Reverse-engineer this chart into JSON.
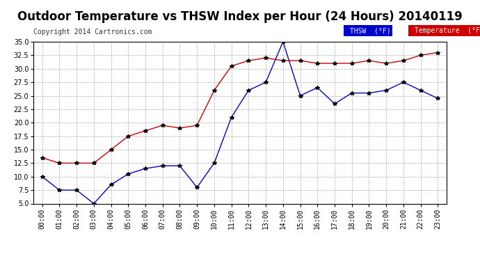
{
  "title": "Outdoor Temperature vs THSW Index per Hour (24 Hours) 20140119",
  "copyright": "Copyright 2014 Cartronics.com",
  "hours": [
    "00:00",
    "01:00",
    "02:00",
    "03:00",
    "04:00",
    "05:00",
    "06:00",
    "07:00",
    "08:00",
    "09:00",
    "10:00",
    "11:00",
    "12:00",
    "13:00",
    "14:00",
    "15:00",
    "16:00",
    "17:00",
    "18:00",
    "19:00",
    "20:00",
    "21:00",
    "22:00",
    "23:00"
  ],
  "temperature": [
    13.5,
    12.5,
    12.5,
    12.5,
    15.0,
    17.5,
    18.5,
    19.5,
    19.0,
    19.5,
    26.0,
    30.5,
    31.5,
    32.0,
    31.5,
    31.5,
    31.0,
    31.0,
    31.0,
    31.5,
    31.0,
    31.5,
    32.5,
    33.0
  ],
  "thsw": [
    10.0,
    7.5,
    7.5,
    5.0,
    8.5,
    10.5,
    11.5,
    12.0,
    12.0,
    8.0,
    12.5,
    21.0,
    26.0,
    27.5,
    35.0,
    25.0,
    26.5,
    23.5,
    25.5,
    25.5,
    26.0,
    27.5,
    26.0,
    24.5
  ],
  "temp_color": "#cc0000",
  "thsw_color": "#0000cc",
  "background_color": "#ffffff",
  "plot_bg_color": "#ffffff",
  "grid_color": "#aaaaaa",
  "ylim": [
    5.0,
    35.0
  ],
  "yticks": [
    5.0,
    7.5,
    10.0,
    12.5,
    15.0,
    17.5,
    20.0,
    22.5,
    25.0,
    27.5,
    30.0,
    32.5,
    35.0
  ],
  "legend_thsw_bg": "#0000cc",
  "legend_temp_bg": "#cc0000",
  "legend_text_color": "#ffffff",
  "title_fontsize": 12,
  "copyright_fontsize": 7,
  "axis_fontsize": 7,
  "marker": "*",
  "marker_color": "#000000",
  "marker_size": 4
}
